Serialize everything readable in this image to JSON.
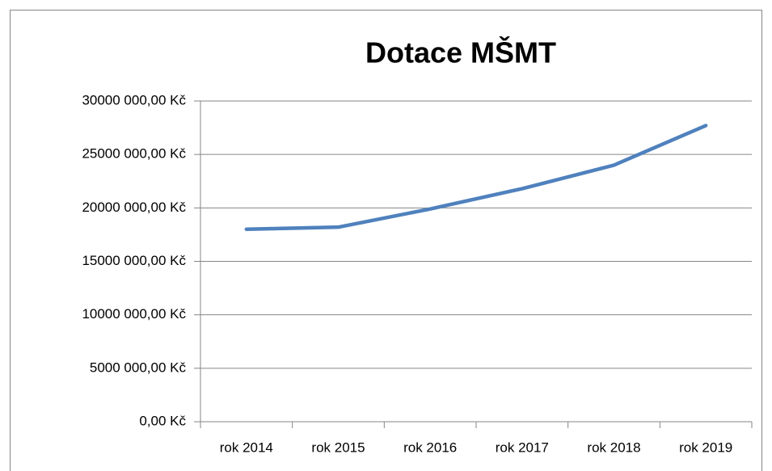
{
  "chart_data": {
    "type": "line",
    "title": "Dotace MŠMT",
    "categories": [
      "rok 2014",
      "rok 2015",
      "rok 2016",
      "rok 2017",
      "rok 2018",
      "rok 2019"
    ],
    "series": [
      {
        "name": "Dotace MŠMT",
        "color": "#4f81bd",
        "values": [
          18000000,
          18200000,
          19900000,
          21800000,
          24000000,
          27700000
        ]
      }
    ],
    "ylim": [
      0,
      30000000
    ],
    "yticks": [
      {
        "value": 0,
        "label": "0,00 Kč"
      },
      {
        "value": 5000000,
        "label": "5000 000,00 Kč"
      },
      {
        "value": 10000000,
        "label": "10000 000,00 Kč"
      },
      {
        "value": 15000000,
        "label": "15000 000,00 Kč"
      },
      {
        "value": 20000000,
        "label": "20000 000,00 Kč"
      },
      {
        "value": 25000000,
        "label": "25000 000,00 Kč"
      },
      {
        "value": 30000000,
        "label": "30000 000,00 Kč"
      }
    ],
    "grid": true
  }
}
